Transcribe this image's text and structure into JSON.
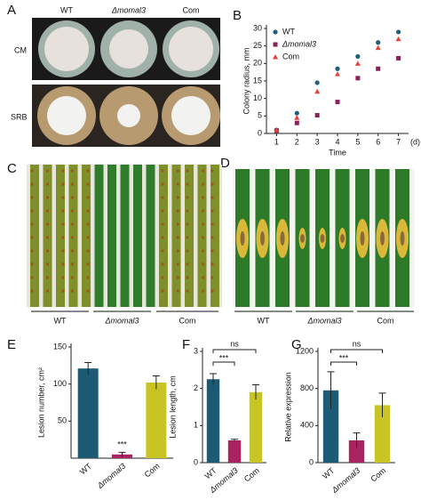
{
  "panels": {
    "A": {
      "letter": "A",
      "columns": [
        "WT",
        "Δmomal3",
        "Com"
      ],
      "rows": [
        "CM",
        "SRB"
      ]
    },
    "C": {
      "letter": "C",
      "groups": [
        "WT",
        "Δmomal3",
        "Com"
      ]
    },
    "D": {
      "letter": "D",
      "groups": [
        "WT",
        "Δmomal3",
        "Com"
      ]
    }
  },
  "chart_data": [
    {
      "type": "scatter",
      "label": "B",
      "x_label": "Time",
      "x_unit": "(d)",
      "y_label": "Colony radius, mm",
      "x": [
        1,
        2,
        3,
        4,
        5,
        6,
        7
      ],
      "xlim": [
        0.5,
        7.5
      ],
      "xticks": [
        1,
        2,
        3,
        4,
        5,
        6,
        7
      ],
      "ylim": [
        0,
        30
      ],
      "yticks": [
        0,
        5,
        10,
        15,
        20,
        25,
        30
      ],
      "legend": "upper left",
      "series": [
        {
          "name": "WT",
          "color": "#1f5f7a",
          "marker": "circle",
          "values": [
            1,
            5.8,
            14.5,
            18.5,
            22,
            26,
            29
          ]
        },
        {
          "name": "Δmomal3",
          "color": "#8a1f5a",
          "marker": "square",
          "values": [
            0.8,
            3,
            5.2,
            9,
            15.8,
            18.5,
            21.5
          ]
        },
        {
          "name": "Com",
          "color": "#e8413a",
          "marker": "triangle",
          "values": [
            1,
            4.5,
            12,
            17,
            20,
            24.5,
            27
          ]
        }
      ]
    },
    {
      "type": "bar",
      "label": "E",
      "y_label": "Lesion number, cm²",
      "categories": [
        "WT",
        "Δmomal3",
        "Com"
      ],
      "values": [
        121,
        5,
        102
      ],
      "errors": [
        8,
        3,
        9
      ],
      "colors": [
        "#1c5b73",
        "#a8235f",
        "#c8c423"
      ],
      "ylim": [
        0,
        150
      ],
      "yticks": [
        50,
        100,
        150
      ],
      "annotations": [
        "***"
      ]
    },
    {
      "type": "bar",
      "label": "F",
      "y_label": "Lesion length, cm",
      "categories": [
        "WT",
        "Δmomal3",
        "Com"
      ],
      "values": [
        2.25,
        0.6,
        1.9
      ],
      "errors": [
        0.15,
        0.03,
        0.2
      ],
      "colors": [
        "#1c5b73",
        "#a8235f",
        "#c8c423"
      ],
      "ylim": [
        0,
        3
      ],
      "yticks": [
        0,
        1,
        2,
        3
      ],
      "annotations": [
        "***",
        "ns"
      ]
    },
    {
      "type": "bar",
      "label": "G",
      "y_label": "Relative expression",
      "categories": [
        "WT",
        "Δmomal3",
        "Com"
      ],
      "values": [
        780,
        240,
        620
      ],
      "errors": [
        200,
        80,
        130
      ],
      "colors": [
        "#1c5b73",
        "#a8235f",
        "#c8c423"
      ],
      "ylim": [
        0,
        1200
      ],
      "yticks": [
        0,
        400,
        800,
        1200
      ],
      "annotations": [
        "***",
        "ns"
      ]
    }
  ]
}
